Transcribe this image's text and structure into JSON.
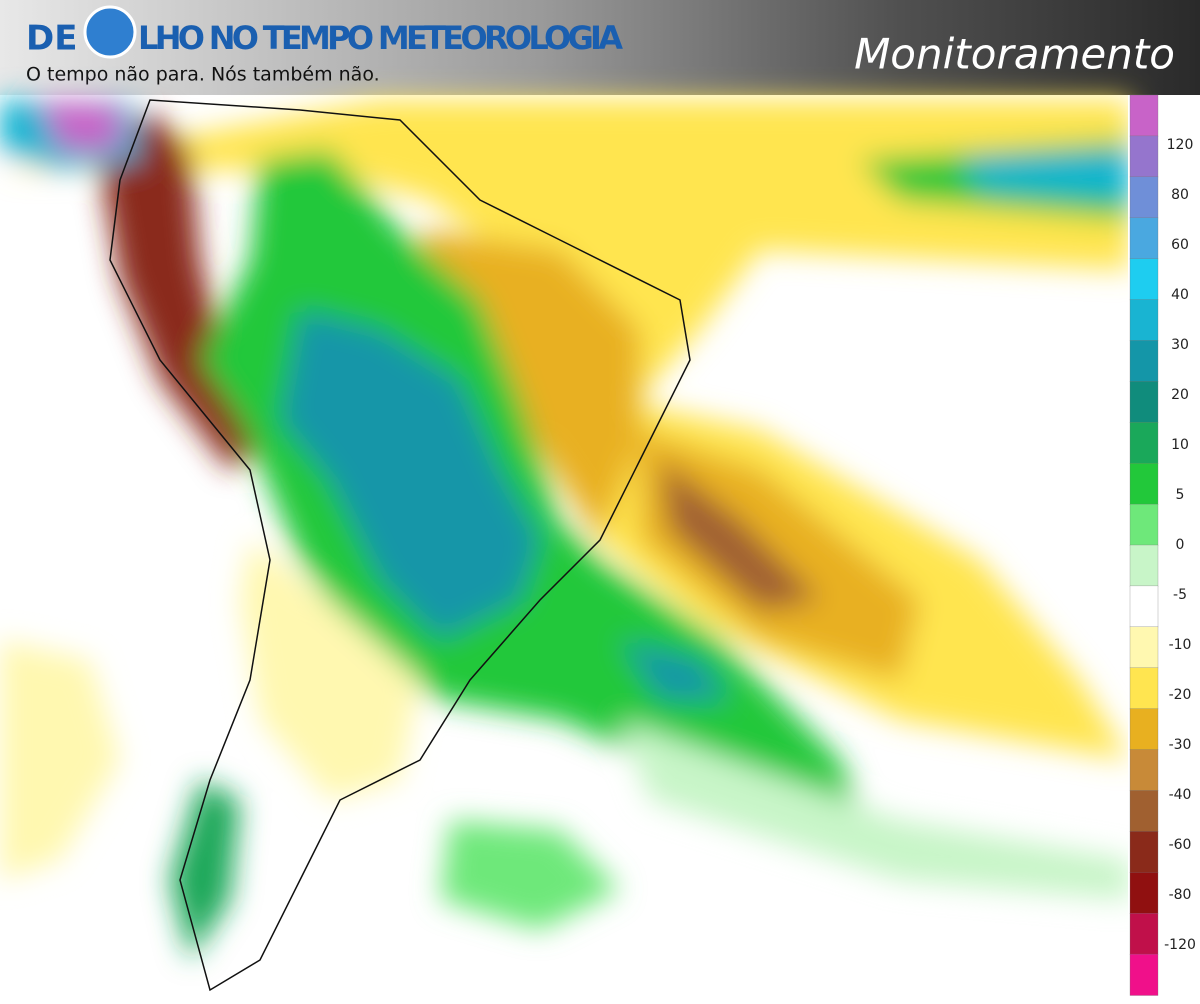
{
  "header": {
    "brand_left": "DE",
    "brand_right": "LHO NO TEMPO METEOROLOGIA",
    "tagline": "O tempo não para. Nós também não.",
    "section": "Monitoramento"
  },
  "legend": {
    "labels": [
      120,
      80,
      60,
      40,
      30,
      20,
      10,
      5,
      0,
      -5,
      -10,
      -20,
      -30,
      -40,
      -60,
      -80,
      -120
    ],
    "colors": [
      "#c863c8",
      "#9575cd",
      "#6f8fd8",
      "#4aa8e0",
      "#1ecdf0",
      "#19b4d2",
      "#1496a8",
      "#108c7c",
      "#1aa85a",
      "#22c83a",
      "#6ee87a",
      "#c8f5c8",
      "#ffffff",
      "#fff8b0",
      "#ffe550",
      "#e8b020",
      "#c88a38",
      "#a06030",
      "#8a2a1a",
      "#901010",
      "#c0104a",
      "#f0108a"
    ]
  }
}
